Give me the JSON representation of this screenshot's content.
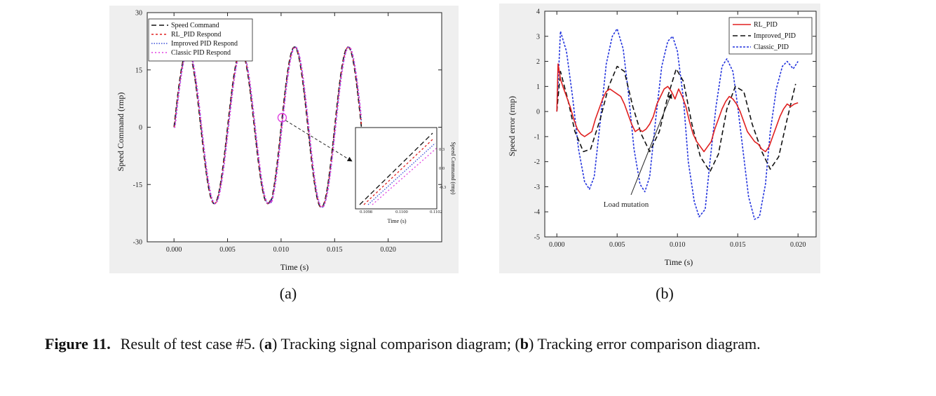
{
  "caption": {
    "lead": "Figure 11.",
    "before_a": "Result of test case #5.  (",
    "a": "a",
    "between": ") Tracking signal comparison diagram; (",
    "b": "b",
    "after_b": ") Tracking error comparison diagram."
  },
  "chart_data": [
    {
      "id": "a",
      "type": "line",
      "panel_label": "(a)",
      "xlabel": "Time (s)",
      "ylabel": "Speed Command (rmp)",
      "xlim": [
        -0.0025,
        0.025
      ],
      "ylim": [
        -30,
        30
      ],
      "xticks": [
        0.0,
        0.005,
        0.01,
        0.015,
        0.02
      ],
      "xtick_labels": [
        "0.000",
        "0.005",
        "0.010",
        "0.015",
        "0.020"
      ],
      "yticks": [
        -30,
        -15,
        0,
        15,
        30
      ],
      "ytick_labels": [
        "-30",
        "-15",
        "0",
        "15",
        "30"
      ],
      "legend_position": "top-left",
      "grid": false,
      "signal": {
        "amplitude": 20,
        "period_s": 0.005,
        "x_end": 0.0175,
        "grows_after_s": 0.009,
        "max_amplitude": 21
      },
      "series": [
        {
          "name": "Speed Command",
          "color": "#111111",
          "dash": "7,4",
          "lag_s": 0
        },
        {
          "name": "RL_PID  Respond",
          "color": "#e02020",
          "dash": "3,3",
          "lag_s": 3e-05
        },
        {
          "name": "Improved  PID  Respond",
          "color": "#3a4fd8",
          "dash": "1.5,2",
          "lag_s": 6e-05
        },
        {
          "name": "Classic  PID  Respond",
          "color": "#e040e0",
          "dash": "2,3",
          "lag_s": 0.0001
        }
      ],
      "inset": {
        "xlabel": "Time (s)",
        "ylabel": "Speed Command (rmp)",
        "xtick_labels": [
          "0.1098",
          "0.1100",
          "0.1102"
        ],
        "ytick_labels": [
          "0.3",
          "0.0",
          "-0.3"
        ],
        "zoom_center": {
          "x": 0.0101,
          "y": 2.5
        }
      }
    },
    {
      "id": "b",
      "type": "line",
      "panel_label": "(b)",
      "xlabel": "Time (s)",
      "ylabel": "Speed error (rmp)",
      "xlim": [
        -0.001,
        0.0215
      ],
      "ylim": [
        -5,
        4
      ],
      "xticks": [
        0.0,
        0.005,
        0.01,
        0.015,
        0.02
      ],
      "xtick_labels": [
        "0.000",
        "0.005",
        "0.010",
        "0.015",
        "0.020"
      ],
      "yticks": [
        -5,
        -4,
        -3,
        -2,
        -1,
        0,
        1,
        2,
        3,
        4
      ],
      "ytick_labels": [
        "-5",
        "-4",
        "-3",
        "-2",
        "-1",
        "0",
        "1",
        "2",
        "3",
        "4"
      ],
      "legend_position": "top-right",
      "grid": false,
      "annotation": {
        "text": "Load mutation",
        "x": 0.0095,
        "y": 0.7
      },
      "series": [
        {
          "name": "RL_PID",
          "color": "#e02020",
          "dash": "",
          "x": [
            0,
            0.0001,
            0.0003,
            0.0005,
            0.0008,
            0.0011,
            0.0014,
            0.0017,
            0.002,
            0.0023,
            0.0026,
            0.0029,
            0.0032,
            0.0035,
            0.0038,
            0.0041,
            0.0044,
            0.0047,
            0.005,
            0.0053,
            0.0056,
            0.0059,
            0.0062,
            0.0065,
            0.0068,
            0.0071,
            0.0074,
            0.0077,
            0.008,
            0.0083,
            0.0086,
            0.0089,
            0.0092,
            0.0095,
            0.0098,
            0.0101,
            0.0104,
            0.0107,
            0.011,
            0.0113,
            0.0116,
            0.0119,
            0.0122,
            0.0125,
            0.0128,
            0.0131,
            0.0134,
            0.0137,
            0.014,
            0.0143,
            0.0146,
            0.0149,
            0.0152,
            0.0155,
            0.0158,
            0.0161,
            0.0164,
            0.0167,
            0.017,
            0.0173,
            0.0176,
            0.0179,
            0.0182,
            0.0185,
            0.0188,
            0.0191,
            0.0194,
            0.0197,
            0.02
          ],
          "y": [
            0,
            1.9,
            1.3,
            1.0,
            0.6,
            0.2,
            -0.3,
            -0.7,
            -0.9,
            -1.0,
            -0.9,
            -0.8,
            -0.3,
            0.1,
            0.5,
            0.8,
            0.9,
            0.8,
            0.7,
            0.6,
            0.3,
            -0.1,
            -0.5,
            -0.8,
            -0.7,
            -0.8,
            -0.7,
            -0.5,
            -0.2,
            0.3,
            0.6,
            0.9,
            1.0,
            0.8,
            0.5,
            0.9,
            0.6,
            0.2,
            -0.4,
            -0.9,
            -1.2,
            -1.4,
            -1.6,
            -1.4,
            -1.2,
            -0.7,
            -0.3,
            0.1,
            0.4,
            0.6,
            0.5,
            0.3,
            0.0,
            -0.4,
            -0.8,
            -1.0,
            -1.2,
            -1.3,
            -1.5,
            -1.6,
            -1.4,
            -1.0,
            -0.6,
            -0.2,
            0.1,
            0.3,
            0.2,
            0.3,
            0.35
          ]
        },
        {
          "name": "Improved_PID",
          "color": "#111111",
          "dash": "7,4",
          "x": [
            0,
            0.0003,
            0.0009,
            0.0015,
            0.0022,
            0.0028,
            0.0036,
            0.0043,
            0.005,
            0.0056,
            0.0063,
            0.007,
            0.0077,
            0.0085,
            0.0092,
            0.0099,
            0.0105,
            0.0112,
            0.0119,
            0.0127,
            0.0134,
            0.0141,
            0.0148,
            0.0155,
            0.0162,
            0.017,
            0.0177,
            0.0184,
            0.0191,
            0.0198
          ],
          "y": [
            0,
            1.6,
            0.5,
            -0.8,
            -1.6,
            -1.5,
            -0.3,
            1.0,
            1.8,
            1.6,
            0.2,
            -0.9,
            -1.6,
            -0.8,
            0.6,
            1.7,
            1.2,
            -0.5,
            -1.8,
            -2.4,
            -1.7,
            0.1,
            1.0,
            0.8,
            -0.5,
            -1.6,
            -2.3,
            -1.8,
            -0.3,
            1.1
          ]
        },
        {
          "name": "Classic_PID",
          "color": "#2233dd",
          "dash": "3,2",
          "x": [
            0,
            0.0003,
            0.0008,
            0.0013,
            0.0018,
            0.0023,
            0.0027,
            0.0031,
            0.0036,
            0.0041,
            0.0046,
            0.005,
            0.0055,
            0.0059,
            0.0064,
            0.0069,
            0.0073,
            0.0077,
            0.0082,
            0.0087,
            0.0092,
            0.0096,
            0.01,
            0.0105,
            0.0109,
            0.0114,
            0.0118,
            0.0123,
            0.0127,
            0.0132,
            0.0137,
            0.0141,
            0.0146,
            0.015,
            0.0155,
            0.0159,
            0.0164,
            0.0168,
            0.0173,
            0.0177,
            0.0182,
            0.0187,
            0.0191,
            0.0196,
            0.02
          ],
          "y": [
            0,
            3.2,
            2.4,
            0.6,
            -1.5,
            -2.8,
            -3.1,
            -2.6,
            -0.4,
            1.9,
            3.0,
            3.3,
            2.5,
            0.9,
            -1.5,
            -2.9,
            -3.2,
            -2.6,
            -0.3,
            1.8,
            2.8,
            3.0,
            2.4,
            0.5,
            -2.0,
            -3.6,
            -4.2,
            -3.9,
            -2.0,
            0.2,
            1.8,
            2.1,
            1.6,
            0.2,
            -1.8,
            -3.4,
            -4.3,
            -4.2,
            -2.9,
            -0.8,
            0.9,
            1.8,
            2.0,
            1.7,
            2.0
          ]
        }
      ]
    }
  ]
}
